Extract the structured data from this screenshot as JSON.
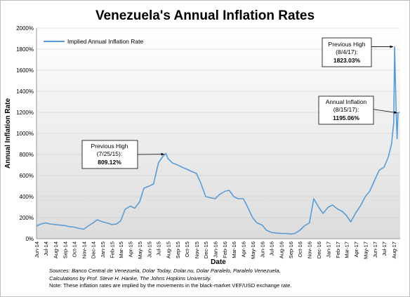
{
  "chart_data": {
    "type": "line",
    "title": "Venezuela's Annual Inflation Rates",
    "xlabel": "Date",
    "ylabel": "Annual Inflation Rate",
    "ylim": [
      0,
      2000
    ],
    "y_ticks": [
      "0%",
      "200%",
      "400%",
      "600%",
      "800%",
      "1000%",
      "1200%",
      "1400%",
      "1600%",
      "1800%",
      "2000%"
    ],
    "x_ticks": [
      "Jun-14",
      "Jul-14",
      "Aug-14",
      "Sep-14",
      "Oct-14",
      "Nov-14",
      "Dec-14",
      "Jan-15",
      "Feb-15",
      "Mar-15",
      "Apr-15",
      "May-15",
      "Jun-15",
      "Jul-15",
      "Aug-15",
      "Sep-15",
      "Oct-15",
      "Nov-15",
      "Dec-15",
      "Jan-16",
      "Feb-16",
      "Mar-16",
      "Apr-16",
      "May-16",
      "Jun-16",
      "Jul-16",
      "Aug-16",
      "Sep-16",
      "Oct-16",
      "Nov-16",
      "Dec-16",
      "Jan-17",
      "Feb-17",
      "Mar-17",
      "Apr-17",
      "May-17",
      "Jun-17",
      "Jul-17",
      "Aug-17"
    ],
    "x_range": [
      "2014-06-01",
      "2017-08-22"
    ],
    "grid": true,
    "legend_position": "top-left",
    "series": [
      {
        "name": "Implied Annual Inflation Rate",
        "color": "#5b9bd5",
        "dates": [
          "2014-06-01",
          "2014-06-15",
          "2014-07-01",
          "2014-07-15",
          "2014-08-01",
          "2014-08-15",
          "2014-09-01",
          "2014-09-15",
          "2014-10-01",
          "2014-10-15",
          "2014-11-01",
          "2014-11-15",
          "2014-12-01",
          "2014-12-15",
          "2015-01-01",
          "2015-01-15",
          "2015-02-01",
          "2015-02-15",
          "2015-03-01",
          "2015-03-15",
          "2015-04-01",
          "2015-04-15",
          "2015-05-01",
          "2015-05-15",
          "2015-06-01",
          "2015-06-15",
          "2015-07-01",
          "2015-07-15",
          "2015-07-25",
          "2015-08-01",
          "2015-08-15",
          "2015-09-01",
          "2015-09-15",
          "2015-10-01",
          "2015-10-15",
          "2015-11-01",
          "2015-11-15",
          "2015-12-01",
          "2015-12-15",
          "2016-01-01",
          "2016-01-15",
          "2016-02-01",
          "2016-02-15",
          "2016-03-01",
          "2016-03-15",
          "2016-04-01",
          "2016-04-15",
          "2016-05-01",
          "2016-05-15",
          "2016-06-01",
          "2016-06-15",
          "2016-07-01",
          "2016-07-15",
          "2016-08-01",
          "2016-08-15",
          "2016-09-01",
          "2016-09-15",
          "2016-10-01",
          "2016-10-15",
          "2016-11-01",
          "2016-11-15",
          "2016-12-01",
          "2016-12-15",
          "2017-01-01",
          "2017-01-15",
          "2017-02-01",
          "2017-02-15",
          "2017-03-01",
          "2017-03-15",
          "2017-04-01",
          "2017-04-15",
          "2017-05-01",
          "2017-05-15",
          "2017-06-01",
          "2017-06-15",
          "2017-07-01",
          "2017-07-15",
          "2017-07-25",
          "2017-08-01",
          "2017-08-04",
          "2017-08-09",
          "2017-08-12",
          "2017-08-15",
          "2017-08-20"
        ],
        "values": [
          120,
          140,
          150,
          140,
          135,
          130,
          125,
          115,
          110,
          100,
          90,
          120,
          150,
          180,
          160,
          150,
          135,
          140,
          170,
          280,
          310,
          290,
          350,
          480,
          500,
          520,
          720,
          780,
          809,
          760,
          720,
          700,
          680,
          660,
          640,
          620,
          530,
          400,
          390,
          380,
          420,
          450,
          460,
          400,
          380,
          380,
          300,
          200,
          150,
          130,
          80,
          60,
          55,
          50,
          50,
          45,
          50,
          80,
          120,
          150,
          380,
          300,
          240,
          300,
          320,
          280,
          260,
          220,
          160,
          250,
          310,
          400,
          450,
          560,
          650,
          680,
          780,
          900,
          1100,
          1823,
          1200,
          950,
          1195,
          1200
        ]
      }
    ],
    "annotations": [
      {
        "line1": "Previous High",
        "line2": "(7/25/15):",
        "value": "809.12%"
      },
      {
        "line1": "Previous High",
        "line2": "(8/4/17):",
        "value": "1823.03%"
      },
      {
        "line1": "Annual Inflation",
        "line2": "(8/15/17):",
        "value": "1195.06%"
      }
    ]
  },
  "footer": {
    "source_line1": "Sources: Banco Central de Venezuela, Dolar Today, Dolar.nu, Dolar Paralelo, Paralelo Venezuela,",
    "source_line2": "Calculations by Prof. Steve H. Hanke, The Johns Hopkins University.",
    "note": "Note: These inflation rates are implied by the movements in the black-market VEF/USD exchange rate."
  }
}
